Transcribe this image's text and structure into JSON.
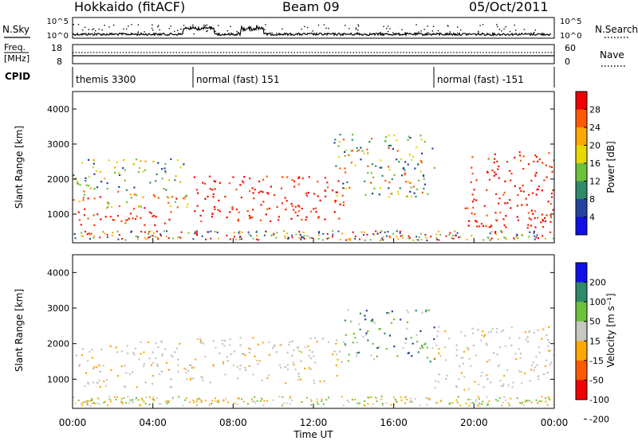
{
  "header": {
    "station": "Hokkaido (fitACF)",
    "beam": "Beam 09",
    "date": "05/Oct/2011"
  },
  "strip_labels": {
    "nsky": "N.Sky",
    "nsearch": "N.Search",
    "freq_line1": "Freq.",
    "freq_line2": "[MHz]",
    "nave": "Nave",
    "cpid": "CPID",
    "sky_ticks": [
      "10^5",
      "10^0"
    ],
    "freq_ticks": [
      "18",
      "8"
    ],
    "nave_ticks": [
      "60",
      "0"
    ]
  },
  "cpid_segments": [
    {
      "label": "themis 3300",
      "start_h": 0.0
    },
    {
      "label": "normal (fast) 151",
      "start_h": 6.0
    },
    {
      "label": "normal (fast) -151",
      "start_h": 18.0
    }
  ],
  "chart_data": [
    {
      "type": "heatmap",
      "name": "power",
      "xlabel": "Time UT",
      "ylabel": "Slant Range [km]",
      "xlim": [
        0,
        24
      ],
      "ylim": [
        180,
        4500
      ],
      "yticks": [
        "1000",
        "2000",
        "3000",
        "4000"
      ],
      "xticks": [
        "00:00",
        "04:00",
        "08:00",
        "12:00",
        "16:00",
        "20:00",
        "00:00"
      ],
      "colorbar": {
        "label": "Power [dB]",
        "ticks": [
          "28",
          "24",
          "20",
          "16",
          "12",
          "8",
          "4"
        ],
        "colors": [
          "#f00000",
          "#ff5a00",
          "#ffa800",
          "#e8d800",
          "#6cc23a",
          "#2f8a6a",
          "#22449e",
          "#1010e6"
        ]
      },
      "bands": [
        {
          "t0": 0.0,
          "t1": 5.0,
          "r0": 680,
          "r1": 1180,
          "level": "high"
        },
        {
          "t0": 0.0,
          "t1": 6.0,
          "r0": 1180,
          "r1": 1700,
          "level": "mid"
        },
        {
          "t0": 0.0,
          "t1": 5.5,
          "r0": 1700,
          "r1": 2600,
          "level": "low"
        },
        {
          "t0": 6.0,
          "t1": 13.5,
          "r0": 800,
          "r1": 2100,
          "level": "high"
        },
        {
          "t0": 13.0,
          "t1": 18.0,
          "r0": 1500,
          "r1": 3300,
          "level": "mixed"
        },
        {
          "t0": 19.5,
          "t1": 24.0,
          "r0": 600,
          "r1": 2800,
          "level": "high"
        }
      ]
    },
    {
      "type": "heatmap",
      "name": "velocity",
      "xlabel": "Time UT",
      "ylabel": "Slant Range [km]",
      "xlim": [
        0,
        24
      ],
      "ylim": [
        180,
        4500
      ],
      "yticks": [
        "1000",
        "2000",
        "3000",
        "4000"
      ],
      "xticks": [
        "00:00",
        "04:00",
        "08:00",
        "12:00",
        "16:00",
        "20:00",
        "00:00"
      ],
      "colorbar": {
        "label": "Velocity [m s⁻¹]",
        "ticks": [
          "200",
          "100",
          "50",
          "15",
          "-15",
          "-50",
          "-100",
          "-200"
        ],
        "colors": [
          "#1010e6",
          "#2f8a6a",
          "#6cc23a",
          "#c8c8c0",
          "#ffa800",
          "#ff5a00",
          "#f00000"
        ]
      },
      "bands": [
        {
          "t0": 0.0,
          "t1": 6.0,
          "r0": 800,
          "r1": 2100,
          "level": "grey"
        },
        {
          "t0": 6.0,
          "t1": 13.5,
          "r0": 900,
          "r1": 2200,
          "level": "grey"
        },
        {
          "t0": 13.5,
          "t1": 18.0,
          "r0": 1500,
          "r1": 3000,
          "level": "green"
        },
        {
          "t0": 18.0,
          "t1": 24.0,
          "r0": 700,
          "r1": 2500,
          "level": "grey"
        }
      ]
    }
  ]
}
